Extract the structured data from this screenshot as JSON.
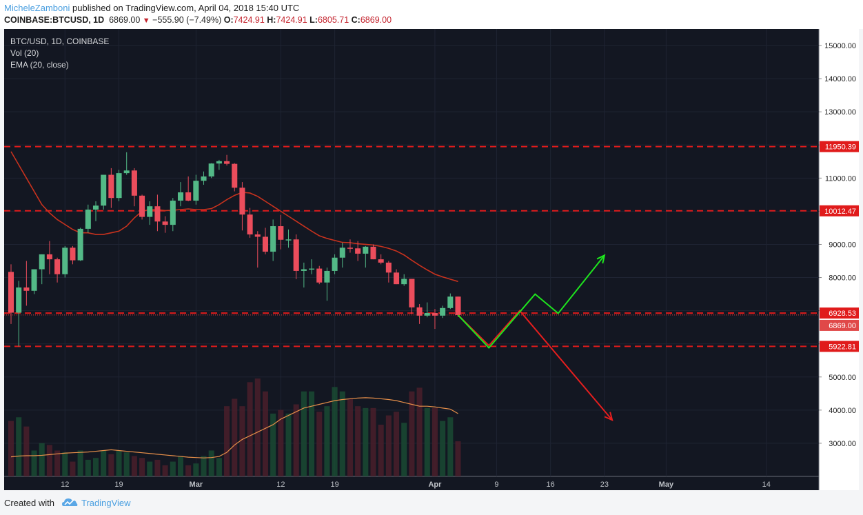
{
  "header": {
    "author": "MicheleZamboni",
    "published": "published on TradingView.com, April 04, 2018 15:40 UTC",
    "symbol": "COINBASE:BTCUSD, 1D",
    "last": "6869.00",
    "change_arrow": "▼",
    "change": "−555.90 (−7.49%)",
    "o_label": "O:",
    "o_value": "7424.91",
    "h_label": "H:",
    "h_value": "7424.91",
    "l_label": "L:",
    "l_value": "6805.71",
    "c_label": "C:",
    "c_value": "6869.00"
  },
  "legend": {
    "line1": "BTC/USD, 1D, COINBASE",
    "line2": "Vol (20)",
    "line3": "EMA (20, close)"
  },
  "footer": {
    "created_with": "Created with",
    "brand": "TradingView"
  },
  "colors": {
    "background": "#131722",
    "up": "#53b987",
    "down": "#eb4d5c",
    "ema": "#c8321e",
    "vol_ma": "#e8904a",
    "level": "#e01b1b",
    "projection_up": "#1ee61e",
    "projection_down": "#e61e1e"
  },
  "chart_data": {
    "type": "candlestick",
    "title": "BTC/USD, 1D, COINBASE",
    "y_axis": {
      "range": [
        2000,
        15500
      ],
      "ticks": [
        3000,
        4000,
        5000,
        6000,
        7000,
        8000,
        9000,
        10000,
        11000,
        12000,
        13000,
        14000,
        15000
      ],
      "tick_labels": [
        "3000.00",
        "4000.00",
        "5000.00",
        "6000.00",
        "7000.00",
        "8000.00",
        "9000.00",
        "10000.00",
        "11000.00",
        "12000.00",
        "13000.00",
        "14000.00",
        "15000.00"
      ]
    },
    "x_axis": {
      "start_date": "2018-02-05",
      "end_date": "2018-05-21",
      "ticks": [
        {
          "date": "2018-02-12",
          "label": "12",
          "bold": false
        },
        {
          "date": "2018-02-19",
          "label": "19",
          "bold": false
        },
        {
          "date": "2018-03-01",
          "label": "Mar",
          "bold": true
        },
        {
          "date": "2018-03-12",
          "label": "12",
          "bold": false
        },
        {
          "date": "2018-03-19",
          "label": "19",
          "bold": false
        },
        {
          "date": "2018-04-01",
          "label": "Apr",
          "bold": true
        },
        {
          "date": "2018-04-09",
          "label": "9",
          "bold": false
        },
        {
          "date": "2018-04-16",
          "label": "16",
          "bold": false
        },
        {
          "date": "2018-04-23",
          "label": "23",
          "bold": false
        },
        {
          "date": "2018-05-01",
          "label": "May",
          "bold": true
        },
        {
          "date": "2018-05-14",
          "label": "14",
          "bold": false
        }
      ]
    },
    "candles": [
      {
        "date": "2018-02-05",
        "open": 8170,
        "high": 8400,
        "low": 6600,
        "close": 6940
      },
      {
        "date": "2018-02-06",
        "open": 6940,
        "high": 7900,
        "low": 5920,
        "close": 7700
      },
      {
        "date": "2018-02-07",
        "open": 7700,
        "high": 8500,
        "low": 7150,
        "close": 7600
      },
      {
        "date": "2018-02-08",
        "open": 7600,
        "high": 8250,
        "low": 7500,
        "close": 8250
      },
      {
        "date": "2018-02-09",
        "open": 8250,
        "high": 8700,
        "low": 7800,
        "close": 8700
      },
      {
        "date": "2018-02-10",
        "open": 8700,
        "high": 9100,
        "low": 8100,
        "close": 8550
      },
      {
        "date": "2018-02-11",
        "open": 8550,
        "high": 8600,
        "low": 7850,
        "close": 8100
      },
      {
        "date": "2018-02-12",
        "open": 8100,
        "high": 8950,
        "low": 8000,
        "close": 8900
      },
      {
        "date": "2018-02-13",
        "open": 8900,
        "high": 8950,
        "low": 8400,
        "close": 8520
      },
      {
        "date": "2018-02-14",
        "open": 8520,
        "high": 9500,
        "low": 8500,
        "close": 9470
      },
      {
        "date": "2018-02-15",
        "open": 9470,
        "high": 10200,
        "low": 9350,
        "close": 10050
      },
      {
        "date": "2018-02-16",
        "open": 10050,
        "high": 10300,
        "low": 9700,
        "close": 10170
      },
      {
        "date": "2018-02-17",
        "open": 10170,
        "high": 11100,
        "low": 10050,
        "close": 11100
      },
      {
        "date": "2018-02-18",
        "open": 11100,
        "high": 11300,
        "low": 10100,
        "close": 10400
      },
      {
        "date": "2018-02-19",
        "open": 10400,
        "high": 11250,
        "low": 10300,
        "close": 11150
      },
      {
        "date": "2018-02-20",
        "open": 11150,
        "high": 11780,
        "low": 11100,
        "close": 11230
      },
      {
        "date": "2018-02-21",
        "open": 11230,
        "high": 11300,
        "low": 10150,
        "close": 10470
      },
      {
        "date": "2018-02-22",
        "open": 10470,
        "high": 10500,
        "low": 9750,
        "close": 9830
      },
      {
        "date": "2018-02-23",
        "open": 9830,
        "high": 10300,
        "low": 9590,
        "close": 10150
      },
      {
        "date": "2018-02-24",
        "open": 10150,
        "high": 10500,
        "low": 9400,
        "close": 9690
      },
      {
        "date": "2018-02-25",
        "open": 9690,
        "high": 9850,
        "low": 9350,
        "close": 9590
      },
      {
        "date": "2018-02-26",
        "open": 9590,
        "high": 10400,
        "low": 9400,
        "close": 10320
      },
      {
        "date": "2018-02-27",
        "open": 10320,
        "high": 10880,
        "low": 10150,
        "close": 10570
      },
      {
        "date": "2018-02-28",
        "open": 10570,
        "high": 11050,
        "low": 10300,
        "close": 10320
      },
      {
        "date": "2018-03-01",
        "open": 10320,
        "high": 11100,
        "low": 10200,
        "close": 10920
      },
      {
        "date": "2018-03-02",
        "open": 10920,
        "high": 11200,
        "low": 10800,
        "close": 11050
      },
      {
        "date": "2018-03-03",
        "open": 11050,
        "high": 11450,
        "low": 11000,
        "close": 11440
      },
      {
        "date": "2018-03-04",
        "open": 11440,
        "high": 11550,
        "low": 11250,
        "close": 11510
      },
      {
        "date": "2018-03-05",
        "open": 11510,
        "high": 11700,
        "low": 11380,
        "close": 11430
      },
      {
        "date": "2018-03-06",
        "open": 11430,
        "high": 11450,
        "low": 10600,
        "close": 10710
      },
      {
        "date": "2018-03-07",
        "open": 10710,
        "high": 10880,
        "low": 9420,
        "close": 9900
      },
      {
        "date": "2018-03-08",
        "open": 9900,
        "high": 10100,
        "low": 9200,
        "close": 9300
      },
      {
        "date": "2018-03-09",
        "open": 9300,
        "high": 9400,
        "low": 8300,
        "close": 9230
      },
      {
        "date": "2018-03-10",
        "open": 9230,
        "high": 9500,
        "low": 8700,
        "close": 8780
      },
      {
        "date": "2018-03-11",
        "open": 8780,
        "high": 9750,
        "low": 8500,
        "close": 9550
      },
      {
        "date": "2018-03-12",
        "open": 9550,
        "high": 9890,
        "low": 8850,
        "close": 9140
      },
      {
        "date": "2018-03-13",
        "open": 9140,
        "high": 9450,
        "low": 8900,
        "close": 9150
      },
      {
        "date": "2018-03-14",
        "open": 9150,
        "high": 9300,
        "low": 7950,
        "close": 8200
      },
      {
        "date": "2018-03-15",
        "open": 8200,
        "high": 8450,
        "low": 7700,
        "close": 8250
      },
      {
        "date": "2018-03-16",
        "open": 8250,
        "high": 8550,
        "low": 8100,
        "close": 8270
      },
      {
        "date": "2018-03-17",
        "open": 8270,
        "high": 8350,
        "low": 7800,
        "close": 7850
      },
      {
        "date": "2018-03-18",
        "open": 7850,
        "high": 8300,
        "low": 7300,
        "close": 8200
      },
      {
        "date": "2018-03-19",
        "open": 8200,
        "high": 8700,
        "low": 8100,
        "close": 8600
      },
      {
        "date": "2018-03-20",
        "open": 8600,
        "high": 9050,
        "low": 8300,
        "close": 8900
      },
      {
        "date": "2018-03-21",
        "open": 8900,
        "high": 9150,
        "low": 8750,
        "close": 8880
      },
      {
        "date": "2018-03-22",
        "open": 8880,
        "high": 9100,
        "low": 8500,
        "close": 8720
      },
      {
        "date": "2018-03-23",
        "open": 8720,
        "high": 8950,
        "low": 8300,
        "close": 8930
      },
      {
        "date": "2018-03-24",
        "open": 8930,
        "high": 9000,
        "low": 8550,
        "close": 8550
      },
      {
        "date": "2018-03-25",
        "open": 8550,
        "high": 8700,
        "low": 8400,
        "close": 8450
      },
      {
        "date": "2018-03-26",
        "open": 8450,
        "high": 8500,
        "low": 7850,
        "close": 8150
      },
      {
        "date": "2018-03-27",
        "open": 8150,
        "high": 8250,
        "low": 7800,
        "close": 7800
      },
      {
        "date": "2018-03-28",
        "open": 7800,
        "high": 8100,
        "low": 7750,
        "close": 7960
      },
      {
        "date": "2018-03-29",
        "open": 7960,
        "high": 7960,
        "low": 6900,
        "close": 7100
      },
      {
        "date": "2018-03-30",
        "open": 7100,
        "high": 7200,
        "low": 6600,
        "close": 6850
      },
      {
        "date": "2018-03-31",
        "open": 6850,
        "high": 7250,
        "low": 6800,
        "close": 6930
      },
      {
        "date": "2018-04-01",
        "open": 6930,
        "high": 7050,
        "low": 6450,
        "close": 6850
      },
      {
        "date": "2018-04-02",
        "open": 6850,
        "high": 7150,
        "low": 6780,
        "close": 7080
      },
      {
        "date": "2018-04-03",
        "open": 7080,
        "high": 7520,
        "low": 7050,
        "close": 7424.91
      },
      {
        "date": "2018-04-04",
        "open": 7424.91,
        "high": 7424.91,
        "low": 6805.71,
        "close": 6869.0
      }
    ],
    "volume": {
      "range_max": 3340,
      "values": [
        1500,
        1600,
        1350,
        700,
        900,
        850,
        700,
        650,
        400,
        700,
        450,
        500,
        700,
        600,
        700,
        650,
        550,
        500,
        400,
        450,
        300,
        400,
        550,
        300,
        350,
        550,
        700,
        500,
        1900,
        2100,
        1900,
        2550,
        2650,
        2300,
        1700,
        1800,
        1700,
        1950,
        2300,
        2300,
        1750,
        1900,
        2420,
        2300,
        2100,
        1900,
        1850,
        1850,
        1400,
        1650,
        1750,
        1450,
        2300,
        2400,
        1850,
        1850,
        1500,
        1600,
        950
      ]
    },
    "ema20": [
      11800,
      11400,
      11000,
      10600,
      10200,
      9950,
      9750,
      9600,
      9450,
      9350,
      9350,
      9300,
      9300,
      9350,
      9400,
      9550,
      9800,
      10000,
      10050,
      10050,
      10020,
      10030,
      10050,
      10070,
      10050,
      10050,
      10080,
      10200,
      10350,
      10480,
      10570,
      10550,
      10450,
      10300,
      10150,
      10000,
      9850,
      9700,
      9550,
      9400,
      9260,
      9180,
      9120,
      9060,
      9050,
      9020,
      9000,
      8980,
      8940,
      8880,
      8800,
      8680,
      8520,
      8370,
      8230,
      8100,
      8020,
      7950,
      7880
    ],
    "vol_ma20": [
      530,
      550,
      560,
      560,
      570,
      590,
      610,
      630,
      640,
      650,
      660,
      680,
      700,
      720,
      700,
      680,
      660,
      640,
      620,
      600,
      580,
      560,
      540,
      520,
      510,
      500,
      510,
      540,
      650,
      850,
      1000,
      1100,
      1200,
      1300,
      1400,
      1550,
      1650,
      1750,
      1850,
      1900,
      1950,
      2000,
      2050,
      2080,
      2100,
      2120,
      2130,
      2120,
      2100,
      2080,
      2050,
      2000,
      1950,
      1900,
      1900,
      1880,
      1850,
      1820,
      1700
    ],
    "levels": [
      {
        "value": 11950.39,
        "label": "11950.39"
      },
      {
        "value": 10012.47,
        "label": "10012.47"
      },
      {
        "value": 6928.53,
        "label": "6928.53"
      },
      {
        "value": 5922.81,
        "label": "5922.81"
      }
    ],
    "last_price": {
      "value": 6869.0,
      "label": "6869.00"
    },
    "projections": {
      "bullish": [
        {
          "date": "2018-04-04",
          "value": 6869
        },
        {
          "date": "2018-04-08",
          "value": 5880
        },
        {
          "date": "2018-04-14",
          "value": 7500
        },
        {
          "date": "2018-04-17",
          "value": 6920
        },
        {
          "date": "2018-04-23",
          "value": 8670
        }
      ],
      "bearish": [
        {
          "date": "2018-04-04",
          "value": 6869
        },
        {
          "date": "2018-04-08",
          "value": 5950
        },
        {
          "date": "2018-04-12",
          "value": 7000
        },
        {
          "date": "2018-04-24",
          "value": 3700
        }
      ]
    }
  }
}
